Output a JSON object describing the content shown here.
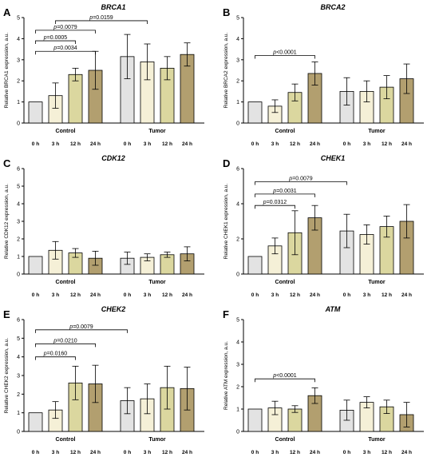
{
  "colors": {
    "bar_fills": [
      "#e3e3e3",
      "#f5f0d7",
      "#dbd79f",
      "#b29f6f"
    ],
    "stroke": "#000000"
  },
  "groups": [
    "Control",
    "Tumor"
  ],
  "time_labels": [
    "0 h",
    "3 h",
    "12 h",
    "24 h"
  ],
  "chart_data": [
    {
      "letter": "A",
      "type": "bar",
      "title": "BRCA1",
      "ylabel": "Relative BRCA1 expression, a.u.",
      "ylim": [
        0,
        5
      ],
      "yticks": [
        0,
        1,
        2,
        3,
        4,
        5
      ],
      "categories": [
        "0 h",
        "3 h",
        "12 h",
        "24 h",
        "0 h",
        "3 h",
        "12 h",
        "24 h"
      ],
      "values": [
        1.0,
        1.3,
        2.3,
        2.5,
        3.15,
        2.9,
        2.6,
        3.25
      ],
      "errors": [
        0.0,
        0.6,
        0.3,
        0.9,
        1.05,
        0.85,
        0.55,
        0.55
      ],
      "brackets": [
        {
          "from": 0,
          "to": 3,
          "level": 3.4,
          "label": "p=0.0034"
        },
        {
          "from": 0,
          "to": 2,
          "level": 3.9,
          "label": "p=0.0005"
        },
        {
          "from": 0,
          "to": 3,
          "level": 4.4,
          "label": "p=0.0079"
        },
        {
          "from": 1,
          "to": 5,
          "level": 4.85,
          "label": "p=0.0159"
        }
      ]
    },
    {
      "letter": "B",
      "type": "bar",
      "title": "BRCA2",
      "ylabel": "Relative BRCA2 expression, a.u.",
      "ylim": [
        0,
        5
      ],
      "yticks": [
        0,
        1,
        2,
        3,
        4,
        5
      ],
      "categories": [
        "0 h",
        "3 h",
        "12 h",
        "24 h",
        "0 h",
        "3 h",
        "12 h",
        "24 h"
      ],
      "values": [
        1.0,
        0.8,
        1.45,
        2.35,
        1.5,
        1.5,
        1.7,
        2.1
      ],
      "errors": [
        0.0,
        0.3,
        0.4,
        0.55,
        0.65,
        0.5,
        0.55,
        0.7
      ],
      "brackets": [
        {
          "from": 0,
          "to": 3,
          "level": 3.2,
          "label": "p<0.0001"
        }
      ]
    },
    {
      "letter": "C",
      "type": "bar",
      "title": "CDK12",
      "ylabel": "Relative CDK12 expression, a.u.",
      "ylim": [
        0,
        6
      ],
      "yticks": [
        0,
        1,
        2,
        3,
        4,
        5,
        6
      ],
      "categories": [
        "0 h",
        "3 h",
        "12 h",
        "24 h",
        "0 h",
        "3 h",
        "12 h",
        "24 h"
      ],
      "values": [
        1.0,
        1.35,
        1.2,
        0.9,
        0.9,
        0.95,
        1.1,
        1.15
      ],
      "errors": [
        0.0,
        0.5,
        0.25,
        0.4,
        0.35,
        0.2,
        0.15,
        0.4
      ],
      "brackets": []
    },
    {
      "letter": "D",
      "type": "bar",
      "title": "CHEK1",
      "ylabel": "Relative CHEK1 expression, a.u.",
      "ylim": [
        0,
        6
      ],
      "yticks": [
        0,
        2,
        4,
        6
      ],
      "categories": [
        "0 h",
        "3 h",
        "12 h",
        "24 h",
        "0 h",
        "3 h",
        "12 h",
        "24 h"
      ],
      "values": [
        1.0,
        1.6,
        2.35,
        3.2,
        2.45,
        2.25,
        2.7,
        3.0
      ],
      "errors": [
        0.0,
        0.45,
        1.25,
        0.7,
        0.95,
        0.55,
        0.6,
        0.95
      ],
      "brackets": [
        {
          "from": 0,
          "to": 2,
          "level": 3.9,
          "label": "p=0.0312"
        },
        {
          "from": 0,
          "to": 3,
          "level": 4.55,
          "label": "p=0.0031"
        },
        {
          "from": 0,
          "to": 4,
          "level": 5.25,
          "label": "p=0.0079"
        }
      ]
    },
    {
      "letter": "E",
      "type": "bar",
      "title": "CHEK2",
      "ylabel": "Relative CHEK2 expression, a.u.",
      "ylim": [
        0,
        6
      ],
      "yticks": [
        0,
        1,
        2,
        3,
        4,
        5,
        6
      ],
      "categories": [
        "0 h",
        "3 h",
        "12 h",
        "24 h",
        "0 h",
        "3 h",
        "12 h",
        "24 h"
      ],
      "values": [
        1.0,
        1.15,
        2.6,
        2.55,
        1.65,
        1.75,
        2.35,
        2.3
      ],
      "errors": [
        0.0,
        0.45,
        0.9,
        1.0,
        0.7,
        0.8,
        1.15,
        1.15
      ],
      "brackets": [
        {
          "from": 0,
          "to": 2,
          "level": 4.0,
          "label": "p=0.0160"
        },
        {
          "from": 0,
          "to": 3,
          "level": 4.7,
          "label": "p=0.0210"
        },
        {
          "from": 0,
          "to": 4,
          "level": 5.45,
          "label": "p=0.0079"
        }
      ]
    },
    {
      "letter": "F",
      "type": "bar",
      "title": "ATM",
      "ylabel": "Relative ATM expression, a.u.",
      "ylim": [
        0,
        5
      ],
      "yticks": [
        0,
        1,
        2,
        3,
        4,
        5
      ],
      "categories": [
        "0 h",
        "3 h",
        "12 h",
        "24 h",
        "0 h",
        "3 h",
        "12 h",
        "24 h"
      ],
      "values": [
        1.0,
        1.05,
        1.0,
        1.6,
        0.95,
        1.3,
        1.1,
        0.75
      ],
      "errors": [
        0.0,
        0.3,
        0.15,
        0.35,
        0.45,
        0.25,
        0.3,
        0.55
      ],
      "brackets": [
        {
          "from": 0,
          "to": 3,
          "level": 2.35,
          "label": "p<0.0001"
        }
      ]
    }
  ]
}
